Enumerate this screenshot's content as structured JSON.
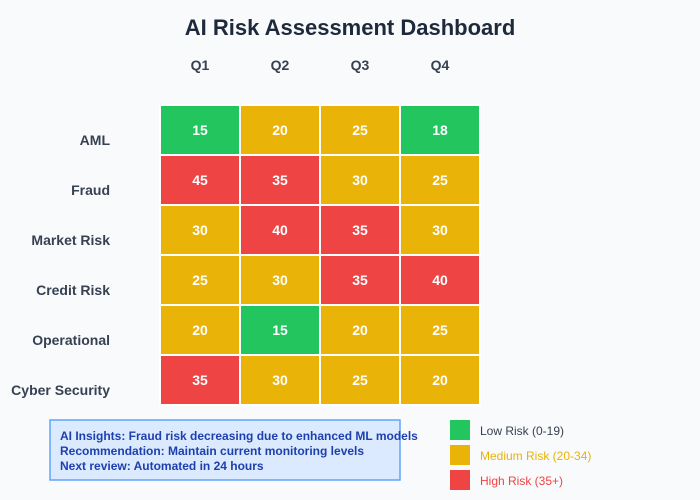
{
  "chart_data": {
    "type": "heatmap",
    "title": "AI Risk Assessment Dashboard",
    "columns": [
      "Q1",
      "Q2",
      "Q3",
      "Q4"
    ],
    "rows": [
      "AML",
      "Fraud",
      "Market Risk",
      "Credit Risk",
      "Operational",
      "Cyber Security"
    ],
    "values": [
      [
        15,
        20,
        25,
        18
      ],
      [
        45,
        35,
        30,
        25
      ],
      [
        30,
        40,
        35,
        30
      ],
      [
        25,
        30,
        35,
        40
      ],
      [
        20,
        15,
        20,
        25
      ],
      [
        35,
        30,
        25,
        20
      ]
    ],
    "thresholds": {
      "low_max": 19,
      "medium_max": 34
    },
    "legend": {
      "placement": "bottom-right",
      "items": [
        {
          "label": "Low Risk (0-19)",
          "color": "#22c55e",
          "text_color": "#374151"
        },
        {
          "label": "Medium Risk (20-34)",
          "color": "#eab308",
          "text_color": "#eab308"
        },
        {
          "label": "High Risk (35+)",
          "color": "#ef4444",
          "text_color": "#ef4444"
        }
      ]
    }
  },
  "colors": {
    "low": "#22c55e",
    "medium": "#eab308",
    "high": "#ef4444"
  },
  "insights": {
    "lines": [
      "AI Insights: Fraud risk decreasing due to enhanced ML models",
      "Recommendation: Maintain current monitoring levels",
      "Next review: Automated in 24 hours"
    ]
  }
}
